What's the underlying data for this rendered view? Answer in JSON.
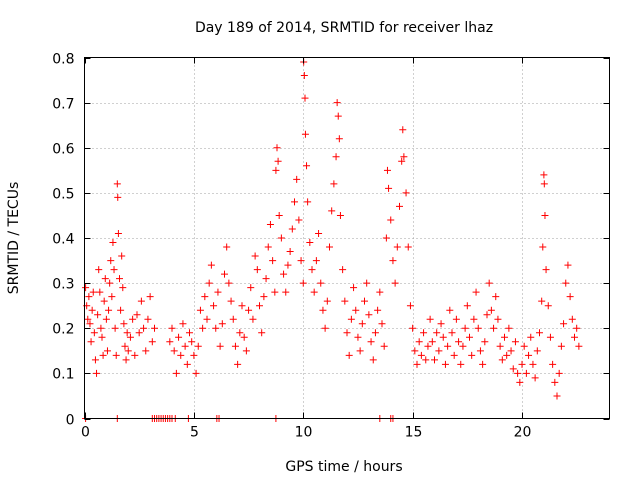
{
  "chart_data": {
    "type": "scatter",
    "title": "Day 189 of 2014, SRMTID for receiver lhaz",
    "xlabel": "GPS time / hours",
    "ylabel": "SRMTID / TECUs",
    "xlim": [
      0,
      24
    ],
    "ylim": [
      0,
      0.8
    ],
    "xticks": [
      0,
      5,
      10,
      15,
      20
    ],
    "yticks": [
      0,
      0.1,
      0.2,
      0.3,
      0.4,
      0.5,
      0.6,
      0.7,
      0.8
    ],
    "xtick_labels": [
      "0",
      "5",
      "10",
      "15",
      "20"
    ],
    "ytick_labels": [
      "0",
      "0.1",
      "0.2",
      "0.3",
      "0.4",
      "0.5",
      "0.6",
      "0.7",
      "0.8"
    ],
    "grid": true,
    "marker": "plus",
    "color": "#ff0000",
    "series": [
      {
        "name": "SRMTID",
        "points": [
          [
            0.05,
            0.29
          ],
          [
            0.1,
            0.25
          ],
          [
            0.15,
            0.22
          ],
          [
            0.2,
            0.27
          ],
          [
            0.25,
            0.21
          ],
          [
            0.3,
            0.17
          ],
          [
            0.35,
            0.24
          ],
          [
            0.4,
            0.28
          ],
          [
            0.45,
            0.19
          ],
          [
            0.5,
            0.13
          ],
          [
            0.55,
            0.1
          ],
          [
            0.6,
            0.23
          ],
          [
            0.65,
            0.33
          ],
          [
            0.7,
            0.28
          ],
          [
            0.75,
            0.2
          ],
          [
            0.8,
            0.18
          ],
          [
            0.85,
            0.14
          ],
          [
            0.9,
            0.26
          ],
          [
            0.95,
            0.31
          ],
          [
            1.0,
            0.22
          ],
          [
            1.05,
            0.15
          ],
          [
            1.1,
            0.24
          ],
          [
            1.15,
            0.3
          ],
          [
            1.2,
            0.35
          ],
          [
            1.25,
            0.27
          ],
          [
            1.3,
            0.39
          ],
          [
            1.35,
            0.33
          ],
          [
            1.4,
            0.2
          ],
          [
            1.45,
            0.14
          ],
          [
            1.5,
            0.52
          ],
          [
            1.52,
            0.49
          ],
          [
            1.55,
            0.41
          ],
          [
            1.6,
            0.31
          ],
          [
            1.65,
            0.24
          ],
          [
            1.7,
            0.36
          ],
          [
            1.75,
            0.29
          ],
          [
            1.8,
            0.21
          ],
          [
            1.85,
            0.16
          ],
          [
            1.9,
            0.13
          ],
          [
            1.95,
            0.19
          ],
          [
            2.0,
            0.15
          ],
          [
            2.1,
            0.18
          ],
          [
            2.2,
            0.22
          ],
          [
            2.3,
            0.14
          ],
          [
            2.4,
            0.23
          ],
          [
            2.5,
            0.19
          ],
          [
            2.6,
            0.26
          ],
          [
            2.7,
            0.2
          ],
          [
            2.8,
            0.15
          ],
          [
            2.9,
            0.22
          ],
          [
            3.0,
            0.27
          ],
          [
            3.1,
            0.17
          ],
          [
            3.2,
            0.2
          ],
          [
            3.9,
            0.17
          ],
          [
            4.0,
            0.2
          ],
          [
            4.1,
            0.15
          ],
          [
            4.2,
            0.1
          ],
          [
            4.3,
            0.18
          ],
          [
            4.4,
            0.14
          ],
          [
            4.5,
            0.21
          ],
          [
            4.6,
            0.16
          ],
          [
            4.7,
            0.12
          ],
          [
            4.8,
            0.19
          ],
          [
            4.9,
            0.17
          ],
          [
            5.0,
            0.14
          ],
          [
            5.1,
            0.1
          ],
          [
            5.2,
            0.16
          ],
          [
            5.3,
            0.24
          ],
          [
            5.4,
            0.2
          ],
          [
            5.5,
            0.27
          ],
          [
            5.6,
            0.22
          ],
          [
            5.7,
            0.3
          ],
          [
            5.8,
            0.34
          ],
          [
            5.9,
            0.25
          ],
          [
            6.0,
            0.2
          ],
          [
            6.1,
            0.28
          ],
          [
            6.2,
            0.16
          ],
          [
            6.3,
            0.21
          ],
          [
            6.4,
            0.32
          ],
          [
            6.5,
            0.38
          ],
          [
            6.6,
            0.3
          ],
          [
            6.7,
            0.26
          ],
          [
            6.8,
            0.22
          ],
          [
            6.9,
            0.16
          ],
          [
            7.0,
            0.12
          ],
          [
            7.1,
            0.19
          ],
          [
            7.2,
            0.25
          ],
          [
            7.3,
            0.18
          ],
          [
            7.4,
            0.15
          ],
          [
            7.5,
            0.24
          ],
          [
            7.6,
            0.29
          ],
          [
            7.7,
            0.22
          ],
          [
            7.8,
            0.36
          ],
          [
            7.9,
            0.33
          ],
          [
            8.0,
            0.25
          ],
          [
            8.1,
            0.19
          ],
          [
            8.2,
            0.27
          ],
          [
            8.3,
            0.31
          ],
          [
            8.4,
            0.38
          ],
          [
            8.5,
            0.43
          ],
          [
            8.6,
            0.35
          ],
          [
            8.7,
            0.28
          ],
          [
            8.75,
            0.55
          ],
          [
            8.8,
            0.6
          ],
          [
            8.85,
            0.57
          ],
          [
            8.9,
            0.45
          ],
          [
            9.0,
            0.4
          ],
          [
            9.1,
            0.32
          ],
          [
            9.2,
            0.28
          ],
          [
            9.3,
            0.34
          ],
          [
            9.4,
            0.37
          ],
          [
            9.5,
            0.42
          ],
          [
            9.6,
            0.48
          ],
          [
            9.7,
            0.53
          ],
          [
            9.8,
            0.44
          ],
          [
            9.9,
            0.35
          ],
          [
            10.0,
            0.3
          ],
          [
            10.02,
            0.79
          ],
          [
            10.05,
            0.76
          ],
          [
            10.08,
            0.71
          ],
          [
            10.1,
            0.63
          ],
          [
            10.15,
            0.56
          ],
          [
            10.2,
            0.48
          ],
          [
            10.3,
            0.39
          ],
          [
            10.4,
            0.33
          ],
          [
            10.5,
            0.28
          ],
          [
            10.6,
            0.35
          ],
          [
            10.7,
            0.41
          ],
          [
            10.8,
            0.3
          ],
          [
            10.9,
            0.24
          ],
          [
            11.0,
            0.2
          ],
          [
            11.1,
            0.26
          ],
          [
            11.2,
            0.38
          ],
          [
            11.3,
            0.46
          ],
          [
            11.4,
            0.52
          ],
          [
            11.5,
            0.58
          ],
          [
            11.55,
            0.7
          ],
          [
            11.6,
            0.67
          ],
          [
            11.65,
            0.62
          ],
          [
            11.7,
            0.45
          ],
          [
            11.8,
            0.33
          ],
          [
            11.9,
            0.26
          ],
          [
            12.0,
            0.19
          ],
          [
            12.1,
            0.14
          ],
          [
            12.2,
            0.22
          ],
          [
            12.3,
            0.29
          ],
          [
            12.4,
            0.24
          ],
          [
            12.5,
            0.18
          ],
          [
            12.6,
            0.15
          ],
          [
            12.7,
            0.21
          ],
          [
            12.8,
            0.26
          ],
          [
            12.9,
            0.3
          ],
          [
            13.0,
            0.23
          ],
          [
            13.1,
            0.17
          ],
          [
            13.2,
            0.13
          ],
          [
            13.3,
            0.19
          ],
          [
            13.4,
            0.24
          ],
          [
            13.5,
            0.28
          ],
          [
            13.6,
            0.21
          ],
          [
            13.7,
            0.16
          ],
          [
            13.8,
            0.4
          ],
          [
            13.85,
            0.55
          ],
          [
            13.9,
            0.51
          ],
          [
            14.0,
            0.44
          ],
          [
            14.1,
            0.35
          ],
          [
            14.2,
            0.3
          ],
          [
            14.3,
            0.38
          ],
          [
            14.4,
            0.47
          ],
          [
            14.5,
            0.57
          ],
          [
            14.55,
            0.64
          ],
          [
            14.6,
            0.58
          ],
          [
            14.7,
            0.5
          ],
          [
            14.8,
            0.38
          ],
          [
            14.9,
            0.25
          ],
          [
            15.0,
            0.2
          ],
          [
            15.1,
            0.15
          ],
          [
            15.2,
            0.12
          ],
          [
            15.3,
            0.17
          ],
          [
            15.4,
            0.14
          ],
          [
            15.5,
            0.19
          ],
          [
            15.6,
            0.13
          ],
          [
            15.7,
            0.16
          ],
          [
            15.8,
            0.22
          ],
          [
            15.9,
            0.17
          ],
          [
            16.0,
            0.13
          ],
          [
            16.1,
            0.19
          ],
          [
            16.2,
            0.15
          ],
          [
            16.3,
            0.21
          ],
          [
            16.4,
            0.18
          ],
          [
            16.5,
            0.12
          ],
          [
            16.6,
            0.16
          ],
          [
            16.7,
            0.24
          ],
          [
            16.8,
            0.19
          ],
          [
            16.9,
            0.14
          ],
          [
            17.0,
            0.22
          ],
          [
            17.1,
            0.17
          ],
          [
            17.2,
            0.12
          ],
          [
            17.3,
            0.16
          ],
          [
            17.4,
            0.2
          ],
          [
            17.5,
            0.25
          ],
          [
            17.6,
            0.18
          ],
          [
            17.7,
            0.14
          ],
          [
            17.8,
            0.22
          ],
          [
            17.9,
            0.28
          ],
          [
            18.0,
            0.2
          ],
          [
            18.1,
            0.15
          ],
          [
            18.2,
            0.12
          ],
          [
            18.3,
            0.17
          ],
          [
            18.4,
            0.23
          ],
          [
            18.5,
            0.3
          ],
          [
            18.6,
            0.24
          ],
          [
            18.7,
            0.2
          ],
          [
            18.8,
            0.27
          ],
          [
            18.9,
            0.22
          ],
          [
            19.0,
            0.16
          ],
          [
            19.1,
            0.13
          ],
          [
            19.2,
            0.18
          ],
          [
            19.3,
            0.14
          ],
          [
            19.4,
            0.2
          ],
          [
            19.5,
            0.15
          ],
          [
            19.6,
            0.11
          ],
          [
            19.7,
            0.17
          ],
          [
            19.8,
            0.1
          ],
          [
            19.9,
            0.08
          ],
          [
            20.0,
            0.12
          ],
          [
            20.1,
            0.16
          ],
          [
            20.2,
            0.1
          ],
          [
            20.3,
            0.14
          ],
          [
            20.4,
            0.18
          ],
          [
            20.5,
            0.12
          ],
          [
            20.6,
            0.09
          ],
          [
            20.7,
            0.15
          ],
          [
            20.8,
            0.19
          ],
          [
            20.9,
            0.26
          ],
          [
            20.95,
            0.38
          ],
          [
            21.0,
            0.54
          ],
          [
            21.02,
            0.52
          ],
          [
            21.05,
            0.45
          ],
          [
            21.1,
            0.33
          ],
          [
            21.2,
            0.25
          ],
          [
            21.3,
            0.18
          ],
          [
            21.4,
            0.12
          ],
          [
            21.5,
            0.08
          ],
          [
            21.6,
            0.05
          ],
          [
            21.7,
            0.1
          ],
          [
            21.8,
            0.16
          ],
          [
            21.9,
            0.21
          ],
          [
            22.0,
            0.3
          ],
          [
            22.1,
            0.34
          ],
          [
            22.2,
            0.27
          ],
          [
            22.3,
            0.22
          ],
          [
            22.4,
            0.18
          ],
          [
            22.5,
            0.2
          ],
          [
            22.6,
            0.16
          ]
        ],
        "zero_points": [
          0.05,
          1.5,
          3.1,
          3.2,
          3.3,
          3.4,
          3.5,
          3.6,
          3.7,
          3.8,
          3.9,
          4.0,
          4.15,
          4.75,
          6.05,
          6.15,
          8.75,
          13.5,
          14.0,
          14.1
        ]
      }
    ]
  }
}
